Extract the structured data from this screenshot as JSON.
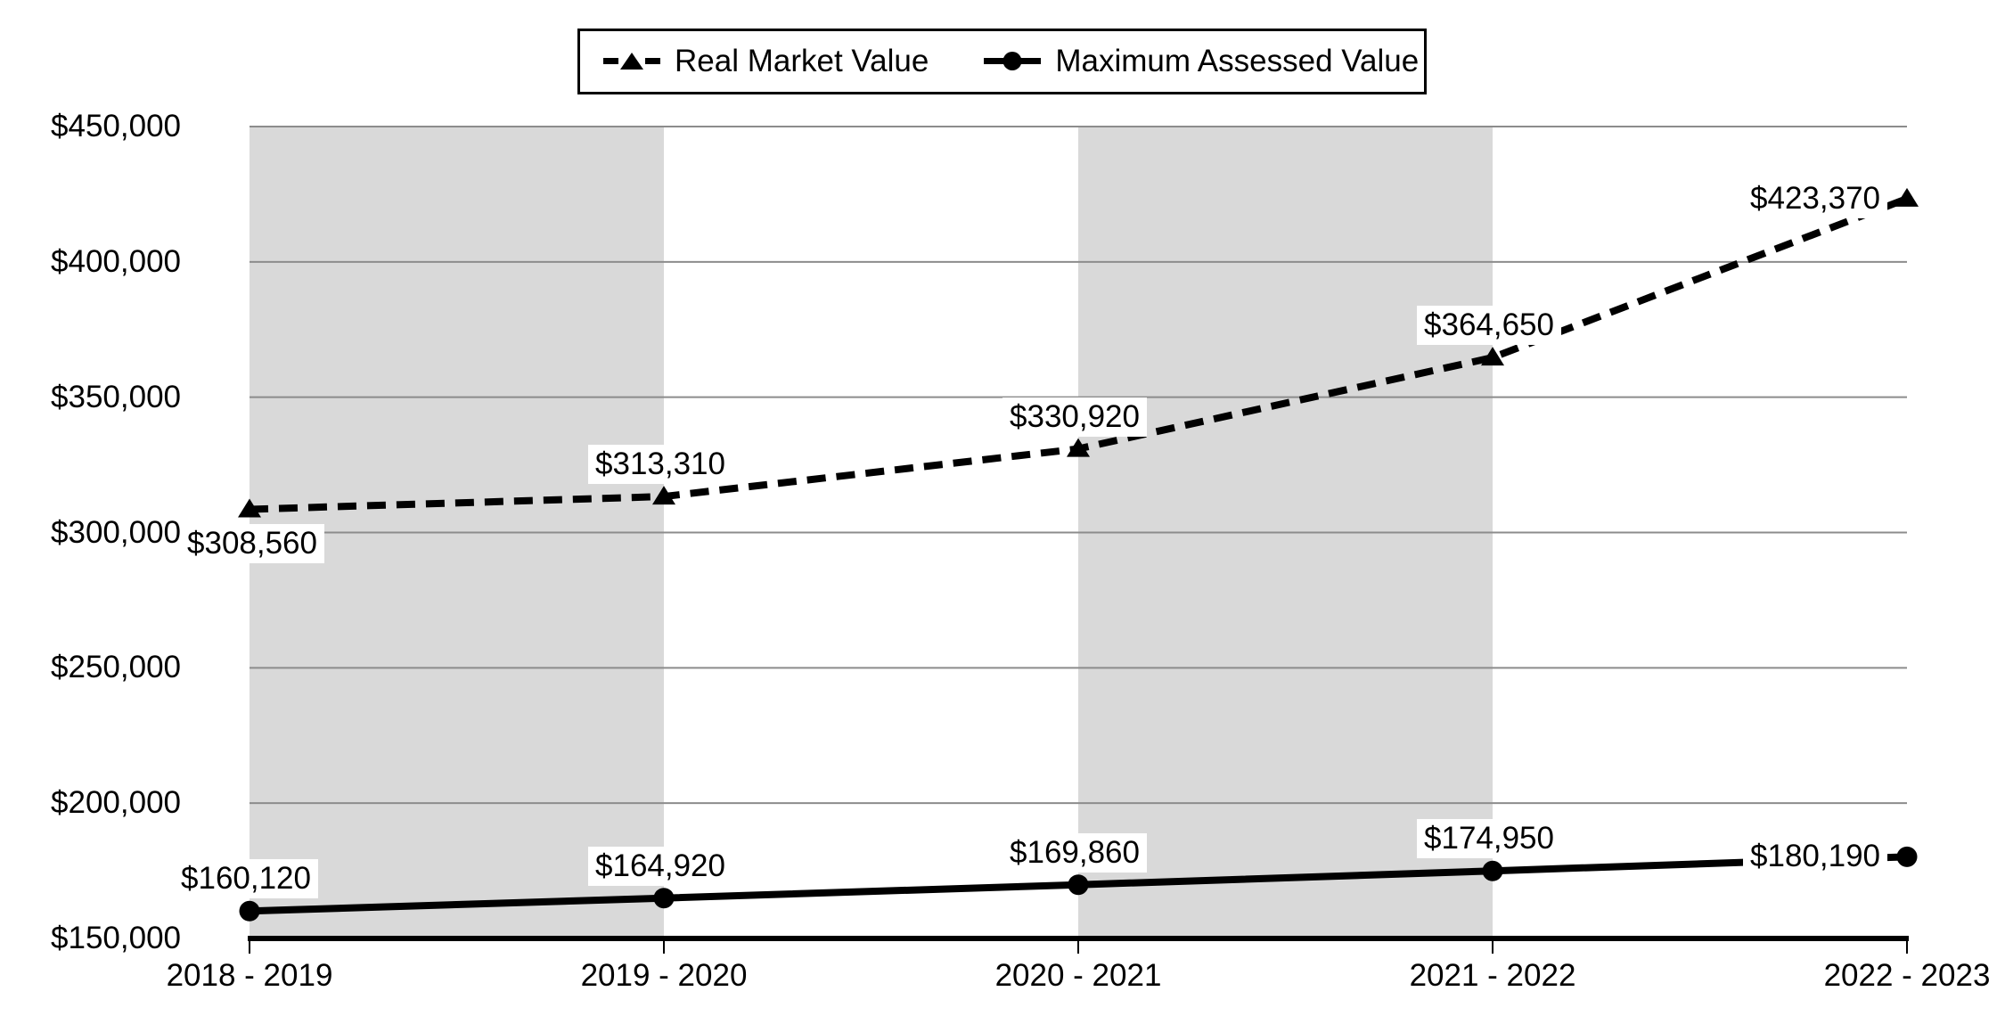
{
  "chart_data": {
    "type": "line",
    "title": "",
    "categories": [
      "2018 - 2019",
      "2019 - 2020",
      "2020 - 2021",
      "2021 - 2022",
      "2022 - 2023"
    ],
    "series": [
      {
        "name": "Real Market Value",
        "values": [
          308560,
          313310,
          330920,
          364650,
          423370
        ],
        "labels": [
          "$308,560",
          "$313,310",
          "$330,920",
          "$364,650",
          "$423,370"
        ],
        "line_style": "dashed",
        "marker": "triangle",
        "color": "#000000",
        "label_placements": [
          "below",
          "above",
          "above",
          "above",
          "left"
        ]
      },
      {
        "name": "Maximum Assessed Value",
        "values": [
          160120,
          164920,
          169860,
          174950,
          180190
        ],
        "labels": [
          "$160,120",
          "$164,920",
          "$169,860",
          "$174,950",
          "$180,190"
        ],
        "line_style": "solid",
        "marker": "circle",
        "color": "#000000",
        "label_placements": [
          "above",
          "above",
          "above",
          "above",
          "left"
        ]
      }
    ],
    "y_axis": {
      "min": 150000,
      "max": 450000,
      "step": 50000,
      "tick_labels": [
        "$450,000",
        "$400,000",
        "$350,000",
        "$300,000",
        "$250,000",
        "$200,000",
        "$150,000"
      ]
    },
    "x_axis": {
      "tick_labels": [
        "2018 - 2019",
        "2019 - 2020",
        "2020 - 2021",
        "2021 - 2022",
        "2022 - 2023"
      ]
    },
    "legend_position": "top",
    "grid": true,
    "plot_bands": [
      [
        0,
        1
      ],
      [
        2,
        3
      ]
    ],
    "colors": {
      "band": "#d9d9d9",
      "gridline": "#8c8c8c",
      "axis": "#000000",
      "series": "#000000",
      "background": "#ffffff",
      "label_background": "#ffffff"
    }
  },
  "legend": {
    "items": [
      {
        "label": "Real Market Value"
      },
      {
        "label": "Maximum Assessed Value"
      }
    ]
  }
}
